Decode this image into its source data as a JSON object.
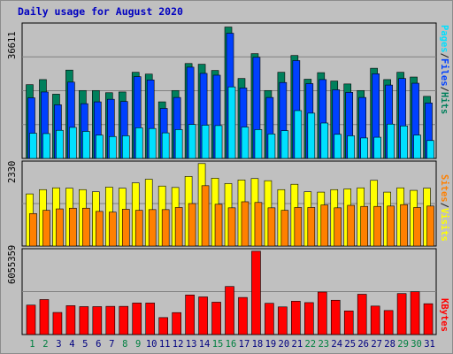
{
  "title": "Daily usage for August 2020",
  "colors": {
    "title": "#0000c0",
    "hits": "#00805c",
    "files": "#0040ff",
    "pages": "#00e0ff",
    "visits": "#ffff00",
    "sites": "#ff8000",
    "kbytes": "#ff0000",
    "weekend_label": "#008040",
    "weekday_label": "#000080",
    "legend_slash": "#202020"
  },
  "legend_top": [
    "Pages",
    "Files",
    "Hits"
  ],
  "legend_mid": [
    "Sites",
    "Visits"
  ],
  "legend_bot": [
    "KBytes"
  ],
  "chart_data": [
    {
      "type": "bar",
      "panel": "hits-files-pages",
      "y_max_label": "36611",
      "ylim": [
        0,
        36611
      ],
      "categories": [
        "1",
        "2",
        "3",
        "4",
        "5",
        "6",
        "7",
        "8",
        "9",
        "10",
        "11",
        "12",
        "13",
        "14",
        "15",
        "16",
        "17",
        "18",
        "19",
        "20",
        "21",
        "22",
        "23",
        "24",
        "25",
        "26",
        "27",
        "28",
        "29",
        "30",
        "31"
      ],
      "weekend_days": [
        "1",
        "2",
        "8",
        "9",
        "15",
        "16",
        "22",
        "23",
        "29",
        "30"
      ],
      "series": [
        {
          "name": "Hits",
          "values": [
            20200,
            21600,
            17600,
            24200,
            18600,
            18600,
            18000,
            18200,
            23600,
            23100,
            15500,
            18600,
            26000,
            25800,
            24100,
            36000,
            21900,
            28700,
            18600,
            23600,
            28200,
            21700,
            23500,
            21200,
            20400,
            18600,
            24700,
            21600,
            23600,
            22300,
            17000
          ]
        },
        {
          "name": "Files",
          "values": [
            16600,
            18200,
            14700,
            20900,
            15000,
            15500,
            16200,
            15600,
            22400,
            21500,
            13700,
            16700,
            25000,
            23300,
            22800,
            34300,
            19300,
            27700,
            16700,
            20800,
            26800,
            20500,
            21600,
            18800,
            18100,
            16700,
            23200,
            20100,
            21900,
            20600,
            15200
          ]
        },
        {
          "name": "Pages",
          "values": [
            6900,
            6800,
            7700,
            8500,
            7400,
            6400,
            6000,
            6200,
            8400,
            8200,
            7000,
            7900,
            9300,
            9100,
            9000,
            19600,
            8600,
            7900,
            6700,
            7600,
            13100,
            12400,
            9700,
            6600,
            6200,
            5600,
            5800,
            9400,
            8900,
            6400,
            4900
          ]
        }
      ]
    },
    {
      "type": "bar",
      "panel": "visits-sites",
      "y_max_label": "2330",
      "ylim": [
        0,
        2330
      ],
      "categories": [
        "1",
        "2",
        "3",
        "4",
        "5",
        "6",
        "7",
        "8",
        "9",
        "10",
        "11",
        "12",
        "13",
        "14",
        "15",
        "16",
        "17",
        "18",
        "19",
        "20",
        "21",
        "22",
        "23",
        "24",
        "25",
        "26",
        "27",
        "28",
        "29",
        "30",
        "31"
      ],
      "series": [
        {
          "name": "Visits",
          "values": [
            1460,
            1580,
            1630,
            1620,
            1580,
            1520,
            1650,
            1620,
            1770,
            1870,
            1680,
            1640,
            1950,
            2310,
            1900,
            1750,
            1850,
            1890,
            1830,
            1580,
            1730,
            1520,
            1510,
            1580,
            1600,
            1630,
            1840,
            1510,
            1630,
            1560,
            1620
          ]
        },
        {
          "name": "Sites",
          "values": [
            910,
            1000,
            1040,
            1060,
            1060,
            970,
            950,
            1030,
            1000,
            1020,
            1020,
            1080,
            1190,
            1690,
            1170,
            1070,
            1240,
            1220,
            1070,
            1000,
            1080,
            1080,
            1150,
            1070,
            1140,
            1110,
            1110,
            1120,
            1160,
            1080,
            1120
          ]
        }
      ]
    },
    {
      "type": "bar",
      "panel": "kbytes",
      "y_max_label": "6055359",
      "ylim": [
        0,
        6055359
      ],
      "categories": [
        "1",
        "2",
        "3",
        "4",
        "5",
        "6",
        "7",
        "8",
        "9",
        "10",
        "11",
        "12",
        "13",
        "14",
        "15",
        "16",
        "17",
        "18",
        "19",
        "20",
        "21",
        "22",
        "23",
        "24",
        "25",
        "26",
        "27",
        "28",
        "29",
        "30",
        "31"
      ],
      "series": [
        {
          "name": "KBytes",
          "values": [
            2120000,
            2520000,
            1590000,
            2080000,
            2010000,
            2010000,
            2030000,
            2030000,
            2270000,
            2270000,
            1220000,
            1580000,
            2850000,
            2710000,
            2330000,
            3460000,
            2670000,
            6000000,
            2250000,
            1990000,
            2400000,
            2300000,
            3060000,
            2470000,
            1700000,
            2900000,
            2050000,
            1730000,
            2950000,
            3080000,
            2220000
          ]
        }
      ]
    }
  ]
}
